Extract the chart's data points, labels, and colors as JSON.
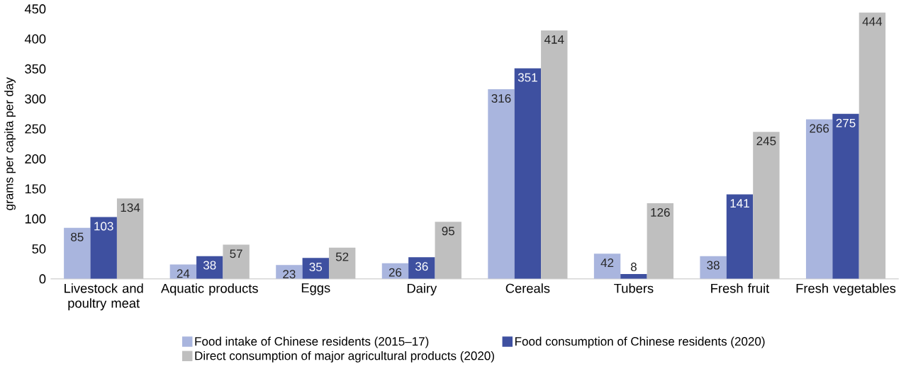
{
  "chart_data": {
    "type": "bar",
    "ylabel": "grams per capita per day",
    "categories": [
      "Livestock and poultry meat",
      "Aquatic products",
      "Eggs",
      "Dairy",
      "Cereals",
      "Tubers",
      "Fresh fruit",
      "Fresh vegetables"
    ],
    "series": [
      {
        "name": "Food intake of Chinese residents (2015–17)",
        "color": "#a9b5de",
        "values": [
          85,
          24,
          23,
          26,
          316,
          42,
          38,
          266
        ],
        "value_labels": [
          "85",
          "24",
          "23",
          "26",
          "316",
          "42",
          "38",
          "266"
        ]
      },
      {
        "name": "Food consumption of Chinese residents (2020)",
        "color": "#3e50a0",
        "values": [
          103,
          38,
          35,
          36,
          351,
          8,
          141,
          275
        ],
        "value_labels": [
          "103",
          "38",
          "35",
          "36",
          "351",
          "8",
          "141",
          "275"
        ]
      },
      {
        "name": "Direct consumption of major agricultural products (2020)",
        "color": "#bfbfbf",
        "values": [
          134,
          57,
          52,
          95,
          414,
          126,
          245,
          444
        ],
        "value_labels": [
          "134",
          "57",
          "52",
          "95",
          "414",
          "126",
          "245",
          "444"
        ]
      }
    ],
    "ylim": [
      0,
      450
    ],
    "yticks": [
      0,
      50,
      100,
      150,
      200,
      250,
      300,
      350,
      400,
      450
    ],
    "grid": false,
    "legend": "bottom"
  }
}
